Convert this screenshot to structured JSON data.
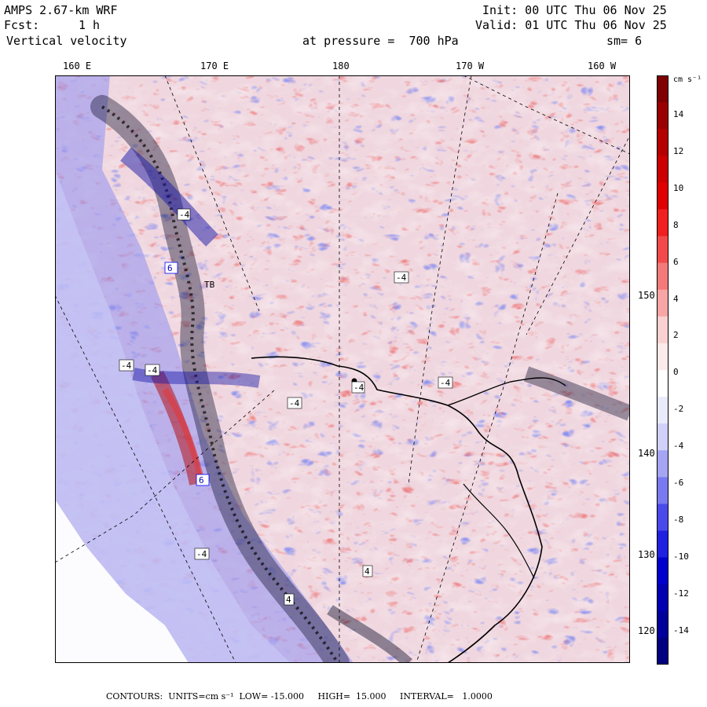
{
  "header": {
    "model": "AMPS 2.67-km WRF",
    "init": "Init: 00 UTC Thu 06 Nov 25",
    "fcst_label": "Fcst:",
    "fcst_value": "1 h",
    "valid": "Valid: 01 UTC Thu 06 Nov 25",
    "field": "Vertical velocity",
    "pressure": "at pressure =  700 hPa",
    "smoothing": "sm= 6"
  },
  "longitude_labels": [
    "160 E",
    "170 E",
    "180",
    "170 W",
    "160 W"
  ],
  "latitude_labels": [
    "150 W",
    "140 W",
    "130 W",
    "120 W"
  ],
  "colorbar": {
    "unit": "cm s⁻¹",
    "ticks": [
      "14",
      "12",
      "10",
      "8",
      "6",
      "4",
      "2",
      "0",
      "-2",
      "-4",
      "-6",
      "-8",
      "-10",
      "-12",
      "-14"
    ],
    "colors": [
      "#7f0000",
      "#9a0000",
      "#b50000",
      "#cc0000",
      "#e00000",
      "#f02020",
      "#f24a4a",
      "#f47a7a",
      "#f7a5a5",
      "#fad0d0",
      "#fdeaea",
      "#ffffff",
      "#eaeafd",
      "#d0d0fa",
      "#a5a5f4",
      "#7a7af0",
      "#4a4aea",
      "#2020e0",
      "#0000cc",
      "#0000b0",
      "#00009a",
      "#000080"
    ]
  },
  "map_labels": [
    "-4",
    "-4",
    "-4",
    "-4",
    "-4",
    "-4",
    "-4",
    "-4",
    "4",
    "4",
    "6",
    "6",
    "TB"
  ],
  "footer": "CONTOURS:  UNITS=cm s⁻¹  LOW= -15.000     HIGH=  15.000     INTERVAL=   1.0000"
}
